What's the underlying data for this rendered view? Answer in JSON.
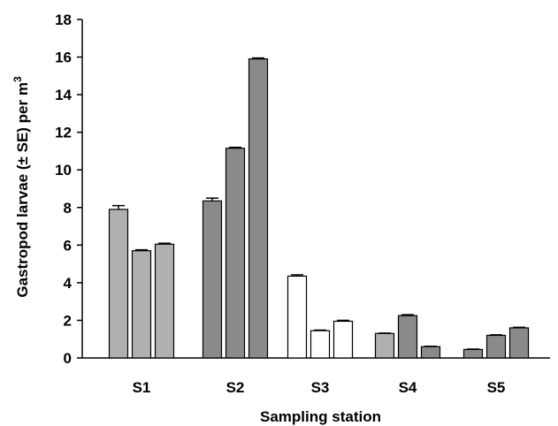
{
  "chart_data": {
    "type": "bar",
    "title": "",
    "xlabel": "Sampling station",
    "ylabel_main": "Gastropod larvae (± SE) per m",
    "ylabel_sup": "3",
    "ylim": [
      0,
      18
    ],
    "ytick_step": 2,
    "yticks": [
      "0",
      "2",
      "4",
      "6",
      "8",
      "10",
      "12",
      "14",
      "16",
      "18"
    ],
    "grid": false,
    "legend": "none",
    "categories": [
      "S1",
      "S2",
      "S3",
      "S4",
      "S5"
    ],
    "groups": [
      {
        "station": "S1",
        "bars": [
          {
            "value": 7.9,
            "se": 0.2,
            "color": "#b0b0b0"
          },
          {
            "value": 5.7,
            "se": 0.05,
            "color": "#b0b0b0"
          },
          {
            "value": 6.05,
            "se": 0.05,
            "color": "#b0b0b0"
          }
        ]
      },
      {
        "station": "S2",
        "bars": [
          {
            "value": 8.35,
            "se": 0.15,
            "color": "#8a8a8a"
          },
          {
            "value": 11.15,
            "se": 0.05,
            "color": "#8a8a8a"
          },
          {
            "value": 15.9,
            "se": 0.05,
            "color": "#8a8a8a"
          }
        ]
      },
      {
        "station": "S3",
        "bars": [
          {
            "value": 4.35,
            "se": 0.07,
            "color": "#ffffff"
          },
          {
            "value": 1.45,
            "se": 0.03,
            "color": "#ffffff"
          },
          {
            "value": 1.95,
            "se": 0.05,
            "color": "#ffffff"
          }
        ]
      },
      {
        "station": "S4",
        "bars": [
          {
            "value": 1.3,
            "se": 0.02,
            "color": "#b0b0b0"
          },
          {
            "value": 2.25,
            "se": 0.05,
            "color": "#8a8a8a"
          },
          {
            "value": 0.6,
            "se": 0.02,
            "color": "#8a8a8a"
          }
        ]
      },
      {
        "station": "S5",
        "bars": [
          {
            "value": 0.45,
            "se": 0.02,
            "color": "#8a8a8a"
          },
          {
            "value": 1.2,
            "se": 0.03,
            "color": "#8a8a8a"
          },
          {
            "value": 1.6,
            "se": 0.03,
            "color": "#8a8a8a"
          }
        ]
      }
    ]
  }
}
